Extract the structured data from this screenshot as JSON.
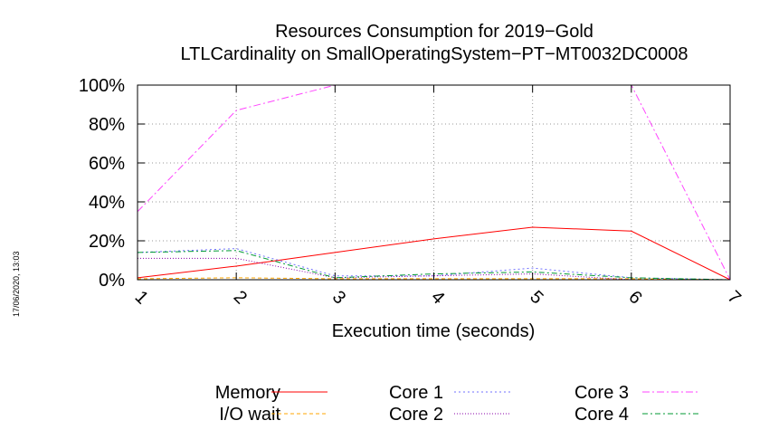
{
  "chart_data": {
    "type": "line",
    "title": "Resources Consumption for 2019−Gold",
    "subtitle": "LTLCardinality on SmallOperatingSystem−PT−MT0032DC0008",
    "xlabel": "Execution time (seconds)",
    "ylabel": "",
    "xlim": [
      1,
      7
    ],
    "ylim": [
      0,
      100
    ],
    "x_ticks": [
      "1",
      "2",
      "3",
      "4",
      "5",
      "6",
      "7"
    ],
    "y_ticks": [
      "0%",
      "20%",
      "40%",
      "60%",
      "80%",
      "100%"
    ],
    "grid": true,
    "legend_position": "bottom",
    "timestamp": "17/06/2020, 13:03",
    "series": [
      {
        "name": "Memory",
        "color": "#ff0000",
        "dash": "",
        "x": [
          1,
          2,
          3,
          4,
          5,
          6,
          7
        ],
        "values": [
          1,
          7,
          14,
          21,
          27,
          25,
          0
        ]
      },
      {
        "name": "I/O wait",
        "color": "#ffa500",
        "dash": "4,3",
        "x": [
          1,
          2,
          3,
          4,
          5,
          6,
          7
        ],
        "values": [
          0.5,
          1,
          0.5,
          0.5,
          0.5,
          0.5,
          0
        ]
      },
      {
        "name": "Core 1",
        "color": "#7070ff",
        "dash": "2,3",
        "x": [
          1,
          2,
          3,
          4,
          5,
          6,
          7
        ],
        "values": [
          14,
          16,
          2,
          2,
          6,
          1,
          0
        ]
      },
      {
        "name": "Core 2",
        "color": "#8800aa",
        "dash": "1,2",
        "x": [
          1,
          2,
          3,
          4,
          5,
          6,
          7
        ],
        "values": [
          11,
          11,
          1,
          2,
          3,
          0,
          0
        ]
      },
      {
        "name": "Core 3",
        "color": "#ff44ff",
        "dash": "8,3,2,3",
        "x": [
          1,
          2,
          3,
          4,
          5,
          6,
          7
        ],
        "values": [
          35,
          87,
          100,
          100,
          100,
          100,
          0
        ]
      },
      {
        "name": "Core 4",
        "color": "#009933",
        "dash": "6,3,2,3",
        "x": [
          1,
          2,
          3,
          4,
          5,
          6,
          7
        ],
        "values": [
          14,
          15,
          1,
          3,
          4,
          1,
          0
        ]
      }
    ]
  }
}
